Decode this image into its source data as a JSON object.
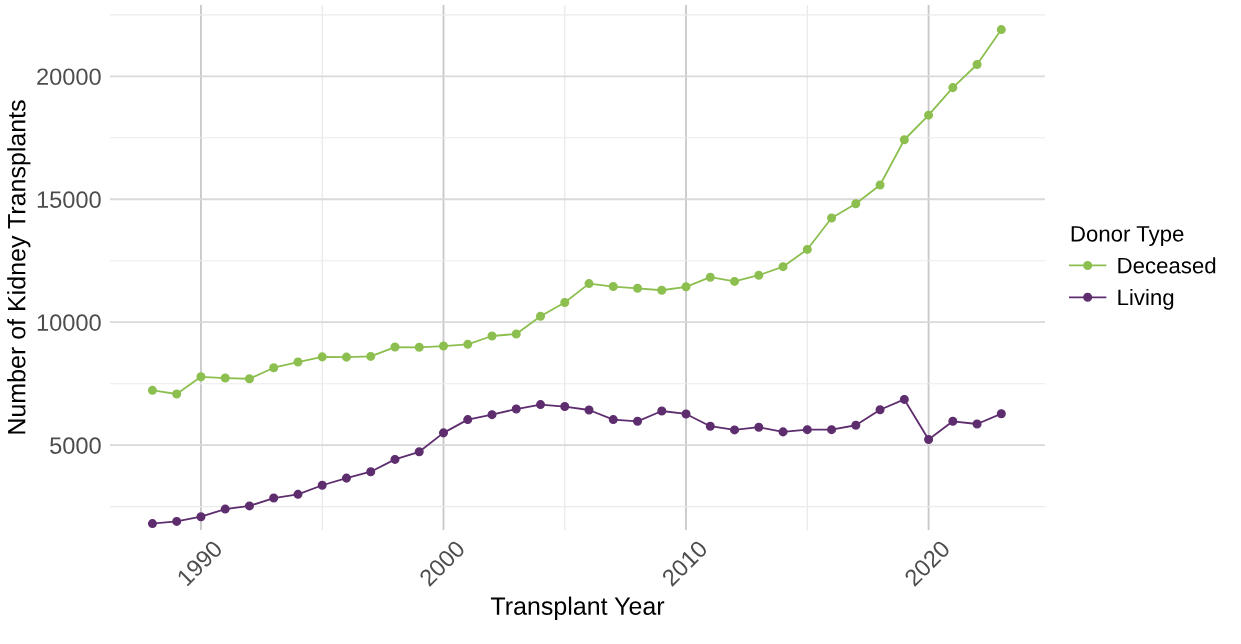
{
  "chart_data": {
    "type": "line",
    "xlabel": "Transplant Year",
    "ylabel": "Number of Kidney Transplants",
    "legend_title": "Donor Type",
    "x": [
      1988,
      1989,
      1990,
      1991,
      1992,
      1993,
      1994,
      1995,
      1996,
      1997,
      1998,
      1999,
      2000,
      2001,
      2002,
      2003,
      2004,
      2005,
      2006,
      2007,
      2008,
      2009,
      2010,
      2011,
      2012,
      2013,
      2014,
      2015,
      2016,
      2017,
      2018,
      2019,
      2020,
      2021,
      2022,
      2023
    ],
    "series": [
      {
        "name": "Deceased",
        "color": "#8cbf4f",
        "values": [
          7230,
          7080,
          7780,
          7730,
          7700,
          8150,
          8380,
          8590,
          8580,
          8610,
          8990,
          8980,
          9030,
          9100,
          9440,
          9520,
          10240,
          10800,
          11570,
          11450,
          11380,
          11300,
          11440,
          11830,
          11660,
          11910,
          12260,
          12960,
          14240,
          14820,
          15580,
          17420,
          18420,
          19540,
          20480,
          21900
        ]
      },
      {
        "name": "Living",
        "color": "#5e2d6e",
        "values": [
          1810,
          1900,
          2090,
          2400,
          2530,
          2850,
          3000,
          3370,
          3660,
          3920,
          4420,
          4730,
          5500,
          6040,
          6240,
          6470,
          6650,
          6570,
          6430,
          6040,
          5970,
          6390,
          6270,
          5770,
          5620,
          5730,
          5540,
          5630,
          5630,
          5810,
          6440,
          6860,
          5230,
          5970,
          5860,
          6280
        ]
      }
    ],
    "xlim": [
      1986.25,
      2024.8
    ],
    "xticks": [
      1990,
      2000,
      2010,
      2020
    ],
    "ylim": [
      1550,
      22900
    ],
    "yticks": [
      5000,
      10000,
      15000,
      20000
    ],
    "grid": true,
    "legend": "right",
    "marker": "circle",
    "line_style": "solid"
  }
}
